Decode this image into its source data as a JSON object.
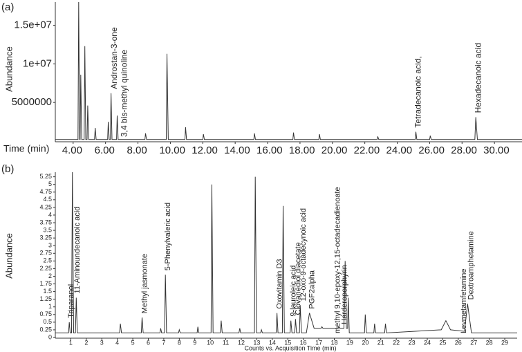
{
  "chart_data": [
    {
      "type": "line",
      "panel_label": "(a)",
      "ylabel": "Abundance",
      "xlabel": "Time (min)",
      "xlim": [
        2.9,
        31.7
      ],
      "ylim": [
        0,
        18000000
      ],
      "xticks": [
        {
          "value": 4,
          "label": "4.00"
        },
        {
          "value": 6,
          "label": "6.00"
        },
        {
          "value": 8,
          "label": "8.00"
        },
        {
          "value": 10,
          "label": "10.00"
        },
        {
          "value": 12,
          "label": "12.00"
        },
        {
          "value": 14,
          "label": "14.00"
        },
        {
          "value": 16,
          "label": "16.00"
        },
        {
          "value": 18,
          "label": "18.00"
        },
        {
          "value": 20,
          "label": "20.00"
        },
        {
          "value": 22,
          "label": "22.00"
        },
        {
          "value": 24,
          "label": "24.00"
        },
        {
          "value": 26,
          "label": "26.00"
        },
        {
          "value": 28,
          "label": "28.00"
        },
        {
          "value": 30,
          "label": "30.00"
        }
      ],
      "yticks": [
        5000000,
        {
          "value": 10000000,
          "label": "1e+07"
        },
        {
          "value": 15000000,
          "label": "1.5e+07"
        }
      ],
      "grid": false,
      "x": [
        2.9,
        4.3,
        4.34,
        4.4,
        4.43,
        4.47,
        4.53,
        4.68,
        4.72,
        4.78,
        4.86,
        4.9,
        4.96,
        5.32,
        5.36,
        5.42,
        6.13,
        6.17,
        6.23,
        6.3,
        6.34,
        6.4,
        6.68,
        6.72,
        6.78,
        8.43,
        8.47,
        8.53,
        9.75,
        9.79,
        9.87,
        10.9,
        10.94,
        11.0,
        12.0,
        12.04,
        12.1,
        15.15,
        15.19,
        15.25,
        17.56,
        17.6,
        17.66,
        19.16,
        19.2,
        19.26,
        22.76,
        22.8,
        22.86,
        25.11,
        25.15,
        25.21,
        26.0,
        26.04,
        26.1,
        28.79,
        28.85,
        28.95,
        31.7
      ],
      "series": [
        {
          "color": "#333333",
          "values": [
            200000,
            200000,
            18000000,
            200000,
            200000,
            8600000,
            200000,
            200000,
            12300000,
            200000,
            200000,
            4600000,
            200000,
            200000,
            1700000,
            200000,
            200000,
            2500000,
            200000,
            200000,
            6200000,
            200000,
            200000,
            3300000,
            200000,
            200000,
            1000000,
            200000,
            200000,
            11300000,
            200000,
            200000,
            1800000,
            200000,
            200000,
            900000,
            200000,
            200000,
            1000000,
            200000,
            200000,
            1100000,
            200000,
            200000,
            900000,
            200000,
            200000,
            600000,
            200000,
            200000,
            1200000,
            200000,
            200000,
            700000,
            200000,
            200000,
            3100000,
            200000,
            200000
          ]
        }
      ],
      "annotations": [
        {
          "text": "Androstan-3-one",
          "x": 6.4
        },
        {
          "text": "3,4 bis-methyl quinoline",
          "x": 7.0
        },
        {
          "text": "Tetradecanoic acid,",
          "x": 25.15
        },
        {
          "text": "Hexadecanoic acid",
          "x": 28.85
        }
      ]
    },
    {
      "type": "line",
      "panel_label": "(b)",
      "ylabel": "Abundance",
      "xlabel": "Counts vs. Acquisition Time (min)",
      "xlim": [
        0,
        29.8
      ],
      "ylim": [
        0,
        5.4
      ],
      "xticks": [
        1,
        2,
        3,
        4,
        5,
        6,
        7,
        8,
        9,
        10,
        11,
        12,
        13,
        14,
        15,
        16,
        17,
        18,
        19,
        20,
        21,
        22,
        23,
        24,
        25,
        26,
        27,
        28,
        29
      ],
      "yticks": [
        0,
        0.25,
        0.5,
        0.75,
        1,
        1.25,
        1.5,
        1.75,
        2,
        2.25,
        2.5,
        2.75,
        3,
        3.25,
        3.5,
        3.75,
        4,
        4.25,
        4.5,
        4.75,
        5,
        5.25
      ],
      "grid": false,
      "x": [
        0,
        0.85,
        0.9,
        0.96,
        1.05,
        1.1,
        1.18,
        1.3,
        1.35,
        1.42,
        4.15,
        4.2,
        4.27,
        5.55,
        5.6,
        5.67,
        6.75,
        6.8,
        6.86,
        7.05,
        7.1,
        7.18,
        7.95,
        8.0,
        8.06,
        9.15,
        9.2,
        9.26,
        10.05,
        10.1,
        10.18,
        10.65,
        10.7,
        10.77,
        11.85,
        11.9,
        11.96,
        12.85,
        12.9,
        12.98,
        13.25,
        13.3,
        13.36,
        14.25,
        14.3,
        14.37,
        14.65,
        14.7,
        14.78,
        15.15,
        15.2,
        15.27,
        15.45,
        15.5,
        15.57,
        15.75,
        15.8,
        15.88,
        16.2,
        16.4,
        16.7,
        17.15,
        17.2,
        17.27,
        18.25,
        18.3,
        18.37,
        18.62,
        18.7,
        18.78,
        18.86,
        18.9,
        18.97,
        19.95,
        20.0,
        20.07,
        20.55,
        20.6,
        20.67,
        21.25,
        21.3,
        21.37,
        24.9,
        25.2,
        25.5,
        26.4,
        26.6,
        26.85,
        29.8
      ],
      "series": [
        {
          "color": "#333333",
          "values": [
            0.15,
            0.15,
            0.5,
            0.15,
            0.15,
            5.4,
            0.15,
            0.15,
            1.3,
            0.15,
            0.15,
            0.45,
            0.15,
            0.15,
            0.65,
            0.15,
            0.15,
            0.3,
            0.15,
            0.15,
            2.05,
            0.15,
            0.15,
            0.25,
            0.15,
            0.15,
            0.35,
            0.15,
            0.15,
            5.0,
            0.15,
            0.15,
            0.55,
            0.15,
            0.15,
            0.3,
            0.15,
            0.15,
            5.25,
            0.15,
            0.15,
            0.25,
            0.15,
            0.15,
            0.8,
            0.15,
            0.15,
            4.3,
            0.15,
            0.15,
            0.55,
            0.15,
            0.15,
            0.6,
            0.15,
            0.15,
            1.05,
            0.15,
            0.15,
            0.8,
            0.3,
            0.3,
            0.35,
            0.3,
            0.3,
            0.35,
            0.3,
            0.3,
            2.5,
            0.3,
            0.3,
            1.3,
            0.15,
            0.15,
            0.75,
            0.15,
            0.15,
            0.45,
            0.15,
            0.15,
            0.45,
            0.15,
            0.25,
            0.55,
            0.25,
            0.2,
            1.1,
            0.15,
            0.15
          ]
        }
      ],
      "annotations": [
        {
          "text": "Triparanol",
          "x": 0.85
        },
        {
          "text": "11-Aminoundecanoic acid",
          "x": 1.25
        },
        {
          "text": "Methyl jasmonate",
          "x": 5.6
        },
        {
          "text": "5-Phenylvaleric acid",
          "x": 7.1
        },
        {
          "text": "Oxovitamin D3",
          "x": 14.3
        },
        {
          "text": "9-lauroleic acid",
          "x": 15.2
        },
        {
          "text": "Clovanediol diacetate",
          "x": 15.5
        },
        {
          "text": "12-oxo-9-octadecynoic acid",
          "x": 15.85
        },
        {
          "text": "PGF2alpha",
          "x": 16.4
        },
        {
          "text": "methyl 9,10-epoxy-12,15-octadecadienoate",
          "x": 18.05
        },
        {
          "text": "Harderoporphyrin",
          "x": 18.5
        },
        {
          "text": "Levmetamfetamine",
          "x": 26.2
        },
        {
          "text": "Dextroamphetamine",
          "x": 26.65
        }
      ]
    }
  ]
}
